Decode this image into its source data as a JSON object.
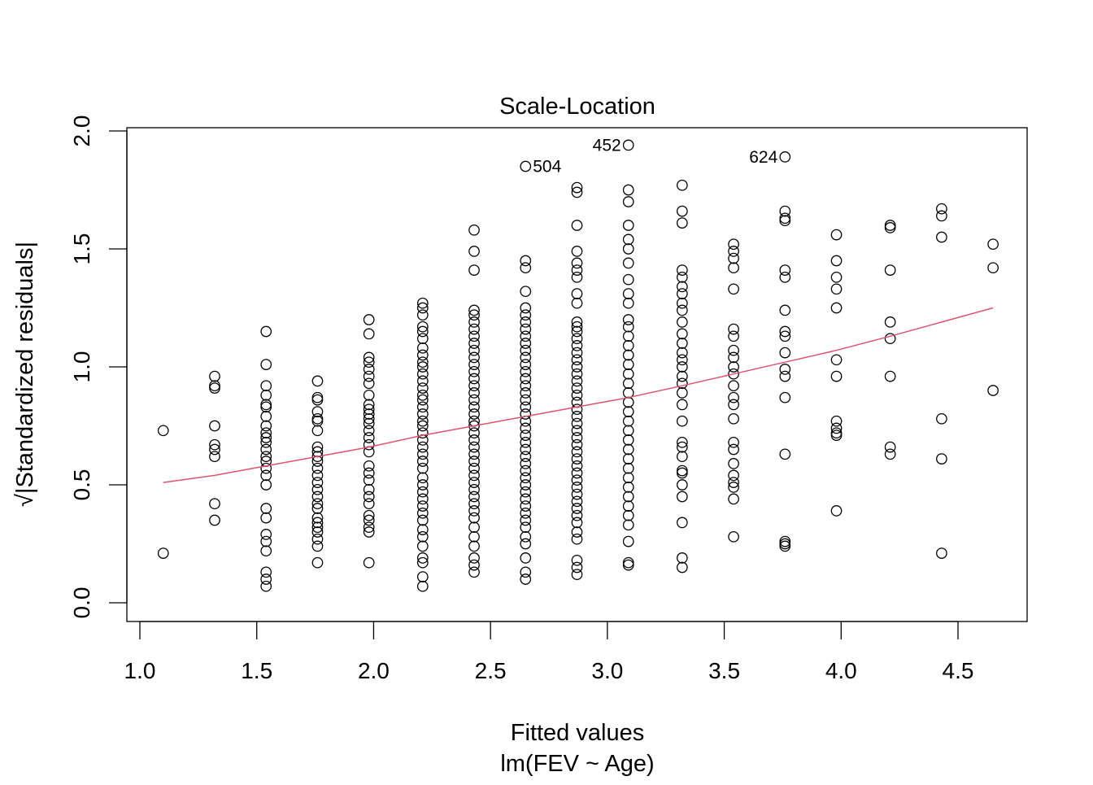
{
  "chart_data": {
    "type": "scatter",
    "title": "Scale-Location",
    "xlabel": "Fitted values",
    "xlabel_sub": "lm(FEV ~ Age)",
    "ylabel": "√|Standardized residuals|",
    "xlim": [
      1.0,
      4.6
    ],
    "ylim": [
      0.0,
      2.0
    ],
    "x_ticks": [
      "1.0",
      "1.5",
      "2.0",
      "2.5",
      "3.0",
      "3.5",
      "4.0",
      "4.5"
    ],
    "y_ticks": [
      "0.0",
      "0.5",
      "1.0",
      "1.5",
      "2.0"
    ],
    "colors": {
      "points": "#000000",
      "smoother": "#DF536B",
      "frame": "#000000"
    },
    "annotations": [
      {
        "label": "504",
        "x": 2.65,
        "y": 1.85,
        "side": "right"
      },
      {
        "label": "452",
        "x": 3.09,
        "y": 1.94,
        "side": "left"
      },
      {
        "label": "624",
        "x": 3.76,
        "y": 1.89,
        "side": "left"
      }
    ],
    "series": [
      {
        "type": "points",
        "columns": [
          {
            "x": 1.1,
            "y": [
              0.73,
              0.21
            ]
          },
          {
            "x": 1.32,
            "y": [
              0.96,
              0.92,
              0.91,
              0.75,
              0.67,
              0.65,
              0.62,
              0.42,
              0.35
            ]
          },
          {
            "x": 1.54,
            "y": [
              1.15,
              1.01,
              0.92,
              0.88,
              0.84,
              0.83,
              0.79,
              0.75,
              0.72,
              0.7,
              0.68,
              0.65,
              0.62,
              0.6,
              0.57,
              0.54,
              0.5,
              0.4,
              0.36,
              0.29,
              0.26,
              0.22,
              0.13,
              0.1,
              0.07
            ]
          },
          {
            "x": 1.76,
            "y": [
              0.94,
              0.87,
              0.86,
              0.81,
              0.78,
              0.77,
              0.73,
              0.66,
              0.64,
              0.62,
              0.6,
              0.57,
              0.54,
              0.51,
              0.48,
              0.45,
              0.42,
              0.4,
              0.36,
              0.34,
              0.32,
              0.3,
              0.27,
              0.24,
              0.17
            ]
          },
          {
            "x": 1.98,
            "y": [
              1.2,
              1.14,
              1.04,
              1.02,
              0.99,
              0.96,
              0.93,
              0.88,
              0.84,
              0.82,
              0.8,
              0.78,
              0.76,
              0.73,
              0.7,
              0.67,
              0.64,
              0.58,
              0.55,
              0.52,
              0.48,
              0.45,
              0.42,
              0.37,
              0.35,
              0.32,
              0.3,
              0.17
            ]
          },
          {
            "x": 2.21,
            "y": [
              1.27,
              1.25,
              1.22,
              1.17,
              1.15,
              1.12,
              1.08,
              1.05,
              1.02,
              1.0,
              0.97,
              0.94,
              0.91,
              0.88,
              0.86,
              0.83,
              0.8,
              0.77,
              0.75,
              0.72,
              0.69,
              0.66,
              0.63,
              0.6,
              0.57,
              0.53,
              0.5,
              0.47,
              0.44,
              0.41,
              0.38,
              0.35,
              0.31,
              0.28,
              0.24,
              0.19,
              0.17,
              0.11,
              0.07
            ]
          },
          {
            "x": 2.43,
            "y": [
              1.58,
              1.49,
              1.41,
              1.24,
              1.22,
              1.19,
              1.16,
              1.13,
              1.1,
              1.07,
              1.04,
              1.01,
              0.98,
              0.95,
              0.92,
              0.89,
              0.86,
              0.83,
              0.8,
              0.77,
              0.75,
              0.72,
              0.69,
              0.66,
              0.63,
              0.6,
              0.57,
              0.54,
              0.51,
              0.48,
              0.45,
              0.42,
              0.39,
              0.36,
              0.32,
              0.28,
              0.24,
              0.19,
              0.16,
              0.13
            ]
          },
          {
            "x": 2.65,
            "y": [
              1.45,
              1.42,
              1.32,
              1.25,
              1.22,
              1.19,
              1.16,
              1.13,
              1.1,
              1.07,
              1.04,
              1.01,
              0.98,
              0.95,
              0.92,
              0.89,
              0.86,
              0.83,
              0.8,
              0.77,
              0.74,
              0.71,
              0.68,
              0.65,
              0.62,
              0.59,
              0.56,
              0.53,
              0.5,
              0.47,
              0.44,
              0.41,
              0.38,
              0.35,
              0.32,
              0.28,
              0.25,
              0.19,
              0.13,
              0.1
            ]
          },
          {
            "x": 2.65,
            "y": [
              1.85
            ]
          },
          {
            "x": 2.87,
            "y": [
              1.76,
              1.74,
              1.6,
              1.49,
              1.44,
              1.41,
              1.38,
              1.31,
              1.27,
              1.19,
              1.17,
              1.15,
              1.12,
              1.09,
              1.06,
              1.03,
              1.0,
              0.97,
              0.94,
              0.91,
              0.88,
              0.85,
              0.82,
              0.79,
              0.76,
              0.73,
              0.7,
              0.67,
              0.64,
              0.61,
              0.58,
              0.55,
              0.52,
              0.49,
              0.46,
              0.43,
              0.4,
              0.37,
              0.34,
              0.3,
              0.27,
              0.18,
              0.15,
              0.12
            ]
          },
          {
            "x": 3.09,
            "y": [
              1.94
            ]
          },
          {
            "x": 3.09,
            "y": [
              1.75,
              1.7,
              1.6,
              1.54,
              1.5,
              1.44,
              1.37,
              1.31,
              1.27,
              1.2,
              1.17,
              1.13,
              1.09,
              1.05,
              1.01,
              0.97,
              0.93,
              0.89,
              0.85,
              0.81,
              0.77,
              0.73,
              0.69,
              0.65,
              0.61,
              0.57,
              0.53,
              0.49,
              0.45,
              0.41,
              0.37,
              0.33,
              0.26,
              0.17,
              0.16
            ]
          },
          {
            "x": 3.32,
            "y": [
              1.77,
              1.66,
              1.61,
              1.41,
              1.38,
              1.34,
              1.31,
              1.27,
              1.24,
              1.19,
              1.14,
              1.1,
              1.06,
              1.03,
              1.0,
              0.96,
              0.93,
              0.89,
              0.84,
              0.77,
              0.68,
              0.66,
              0.62,
              0.56,
              0.55,
              0.5,
              0.45,
              0.34,
              0.19,
              0.15
            ]
          },
          {
            "x": 3.54,
            "y": [
              1.52,
              1.49,
              1.46,
              1.42,
              1.33,
              1.16,
              1.13,
              1.07,
              1.04,
              1.0,
              0.97,
              0.92,
              0.87,
              0.84,
              0.78,
              0.68,
              0.65,
              0.59,
              0.54,
              0.51,
              0.49,
              0.44,
              0.28
            ]
          },
          {
            "x": 3.76,
            "y": [
              1.89
            ]
          },
          {
            "x": 3.76,
            "y": [
              1.66,
              1.63,
              1.62,
              1.41,
              1.38,
              1.24,
              1.15,
              1.13,
              1.06,
              0.99,
              0.96,
              0.87,
              0.63,
              0.26,
              0.25,
              0.24
            ]
          },
          {
            "x": 3.98,
            "y": [
              1.56,
              1.45,
              1.38,
              1.33,
              1.25,
              1.03,
              0.96,
              0.77,
              0.74,
              0.72,
              0.71,
              0.39
            ]
          },
          {
            "x": 4.21,
            "y": [
              1.6,
              1.59,
              1.41,
              1.19,
              1.12,
              0.96,
              0.66,
              0.63
            ]
          },
          {
            "x": 4.43,
            "y": [
              1.67,
              1.64,
              1.55,
              0.78,
              0.61,
              0.21
            ]
          },
          {
            "x": 4.65,
            "y": [
              1.52,
              1.42,
              0.9
            ]
          }
        ]
      },
      {
        "type": "smoother",
        "x": [
          1.1,
          1.32,
          1.54,
          1.76,
          1.98,
          2.21,
          2.43,
          2.65,
          2.87,
          3.09,
          3.32,
          3.54,
          3.76,
          3.98,
          4.21,
          4.43,
          4.65
        ],
        "y": [
          0.51,
          0.54,
          0.58,
          0.62,
          0.66,
          0.71,
          0.75,
          0.79,
          0.83,
          0.87,
          0.92,
          0.97,
          1.02,
          1.07,
          1.13,
          1.19,
          1.25
        ]
      }
    ]
  }
}
